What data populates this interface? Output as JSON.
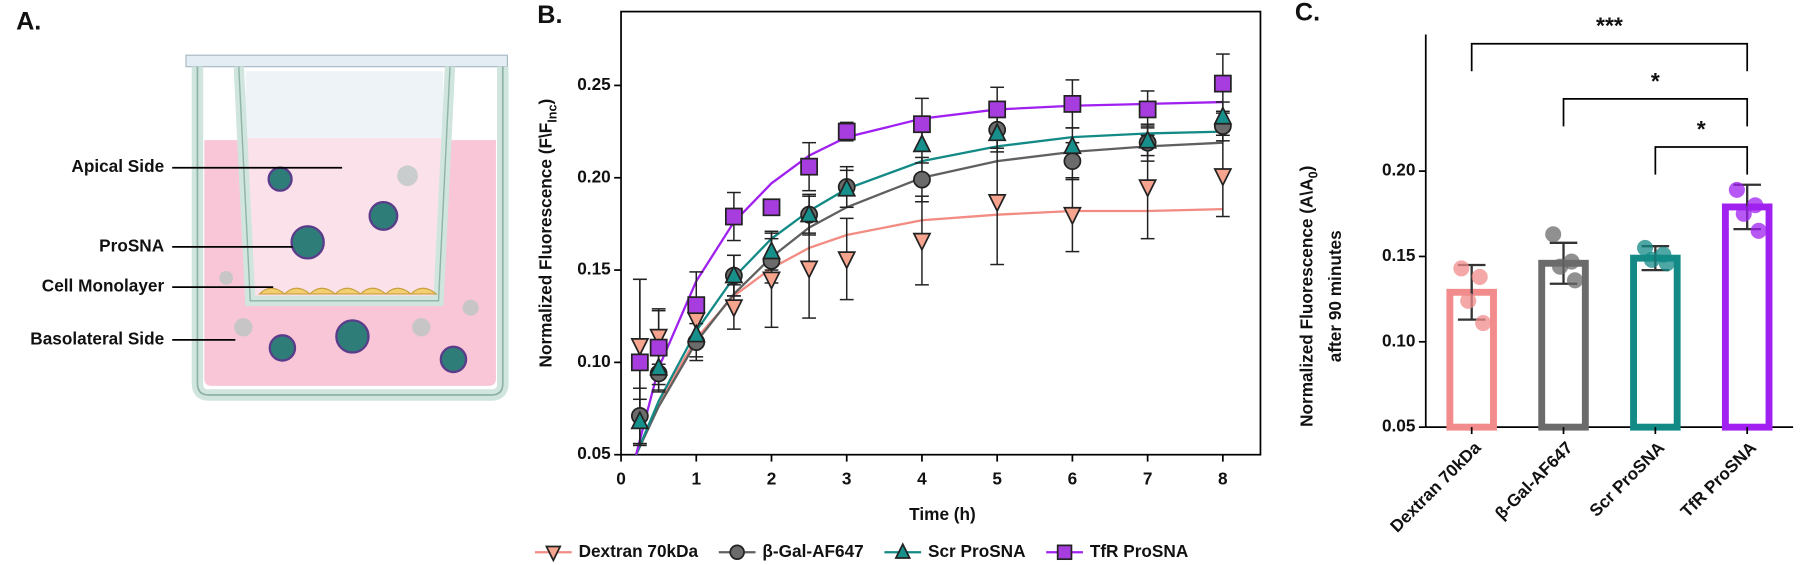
{
  "diagram": {
    "panel_label": "A.",
    "labels": [
      "Apical Side",
      "ProSNA",
      "Cell Monolayer",
      "Basolateral Side"
    ]
  },
  "chart_data": [
    {
      "type": "scatter",
      "panel_label": "B.",
      "xlabel": "Time (h)",
      "ylabel": "Normalized Fluorescence (F\\F",
      "ylabel_sub": "Inc",
      "ylabel_end": ")",
      "x": [
        0.25,
        0.5,
        1,
        1.5,
        2,
        2.5,
        3,
        4,
        5,
        6,
        7,
        8
      ],
      "fit_x": [
        0.2,
        0.5,
        1,
        1.5,
        2,
        2.5,
        3,
        4,
        5,
        6,
        7,
        8
      ],
      "xlim": [
        0,
        8.5
      ],
      "xticks": [
        0,
        1,
        2,
        3,
        4,
        5,
        6,
        7,
        8
      ],
      "ylim": [
        0.05,
        0.29
      ],
      "yticks": [
        0.05,
        {
          "value": 0.1,
          "label": "0.10"
        },
        0.15,
        {
          "value": 0.2,
          "label": "0.20"
        },
        0.25
      ],
      "legend": "bottom",
      "series": [
        {
          "name": "Dextran 70kDa",
          "color": "#f28b82",
          "marker_color": "#f6a48e",
          "marker": "triangle-down",
          "values": [
            0.109,
            0.114,
            0.123,
            0.13,
            0.145,
            0.151,
            0.156,
            0.166,
            0.187,
            0.18,
            0.195,
            0.201
          ],
          "errors": [
            0.036,
            0.015,
            0.01,
            0.012,
            0.026,
            0.027,
            0.022,
            0.024,
            0.034,
            0.02,
            0.028,
            0.022
          ],
          "fit": [
            0.05,
            0.078,
            0.113,
            0.136,
            0.151,
            0.162,
            0.169,
            0.177,
            0.18,
            0.182,
            0.182,
            0.183
          ]
        },
        {
          "name": "β-Gal-AF647",
          "color": "#606060",
          "marker_color": "#6b6b6b",
          "marker": "circle",
          "values": [
            0.071,
            0.094,
            0.111,
            0.147,
            0.155,
            0.18,
            0.195,
            0.199,
            0.226,
            0.209,
            0.219,
            0.228
          ],
          "errors": [
            0.015,
            0.01,
            0.01,
            0.011,
            0.012,
            0.011,
            0.011,
            0.012,
            0.01,
            0.01,
            0.01,
            0.008
          ],
          "fit": [
            0.05,
            0.076,
            0.111,
            0.137,
            0.157,
            0.173,
            0.184,
            0.2,
            0.209,
            0.214,
            0.217,
            0.219
          ]
        },
        {
          "name": "Scr ProSNA",
          "color": "#138a86",
          "marker_color": "#178f8b",
          "marker": "triangle-up",
          "values": [
            0.068,
            0.097,
            0.115,
            0.147,
            0.16,
            0.18,
            0.194,
            0.218,
            0.224,
            0.217,
            0.22,
            0.233
          ],
          "errors": [
            0.012,
            0.012,
            0.012,
            0.011,
            0.01,
            0.01,
            0.01,
            0.01,
            0.01,
            0.01,
            0.008,
            0.008
          ],
          "fit": [
            0.05,
            0.079,
            0.117,
            0.146,
            0.167,
            0.182,
            0.194,
            0.209,
            0.217,
            0.222,
            0.224,
            0.225
          ]
        },
        {
          "name": "TfR ProSNA",
          "color": "#a020f0",
          "marker_color": "#a83ddf",
          "marker": "square",
          "values": [
            0.1,
            0.108,
            0.131,
            0.179,
            0.184,
            0.206,
            0.225,
            0.229,
            0.237,
            0.24,
            0.237,
            0.251
          ],
          "errors": [
            0.045,
            0.02,
            0.018,
            0.013,
            0.004,
            0.013,
            0.005,
            0.014,
            0.012,
            0.013,
            0.01,
            0.016
          ],
          "fit": [
            0.05,
            0.097,
            0.144,
            0.176,
            0.197,
            0.212,
            0.222,
            0.232,
            0.237,
            0.239,
            0.24,
            0.241
          ]
        }
      ]
    },
    {
      "type": "bar",
      "panel_label": "C.",
      "ylabel": "Normalized Fluorescence (A\\A",
      "ylabel_sub": "0",
      "ylabel_end": ")",
      "ylabel2": "after 90 minutes",
      "categories": [
        "Dextran 70kDa",
        "β-Gal-AF647",
        "Scr ProSNA",
        "TfR ProSNA"
      ],
      "values": [
        0.129,
        0.146,
        0.149,
        0.179
      ],
      "errors": [
        0.016,
        0.012,
        0.007,
        0.013
      ],
      "points": [
        [
          0.143,
          0.138,
          0.124,
          0.111
        ],
        [
          0.163,
          0.147,
          0.144,
          0.136
        ],
        [
          0.155,
          0.151,
          0.148,
          0.146
        ],
        [
          0.189,
          0.18,
          0.175,
          0.165
        ]
      ],
      "colors": [
        "#f28b8b",
        "#6b6b6b",
        "#138a86",
        "#a020f0"
      ],
      "ylim": [
        0.05,
        0.28
      ],
      "yticks": [
        0.05,
        {
          "value": 0.1,
          "label": "0.10"
        },
        0.15,
        {
          "value": 0.2,
          "label": "0.20"
        }
      ],
      "comparisons": [
        {
          "from": "Dextran 70kDa",
          "to": "TfR ProSNA",
          "label": "***"
        },
        {
          "from": "β-Gal-AF647",
          "to": "TfR ProSNA",
          "label": "*"
        },
        {
          "from": "Scr ProSNA",
          "to": "TfR ProSNA",
          "label": "*"
        }
      ]
    }
  ]
}
